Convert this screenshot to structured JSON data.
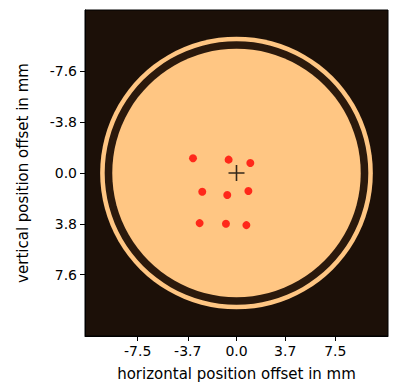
{
  "chart_data": {
    "type": "scatter",
    "xlabel": "horizontal position offset in mm",
    "ylabel": "vertical position offset in mm",
    "xlim": [
      -11.5,
      11.5
    ],
    "ylim": [
      -12.2,
      12.2
    ],
    "xticks": [
      -7.5,
      -3.7,
      {
        "value": 0,
        "label": "0.0"
      },
      3.7,
      7.5
    ],
    "yticks": [
      -7.6,
      -3.8,
      {
        "value": 0,
        "label": "0.0"
      },
      3.8,
      7.6
    ],
    "grid": false,
    "series": [
      {
        "color": "#ff0000",
        "marker": "o",
        "x": [
          -3.3,
          -0.6,
          1.05,
          -2.6,
          -0.7,
          0.9,
          -2.8,
          -0.8,
          0.75
        ],
        "y": [
          -1.1,
          -1.0,
          -0.75,
          1.4,
          1.65,
          1.35,
          3.75,
          3.8,
          3.9
        ]
      },
      {
        "color": "#000000",
        "marker": "+",
        "x": [
          0
        ],
        "y": [
          0
        ]
      }
    ]
  }
}
